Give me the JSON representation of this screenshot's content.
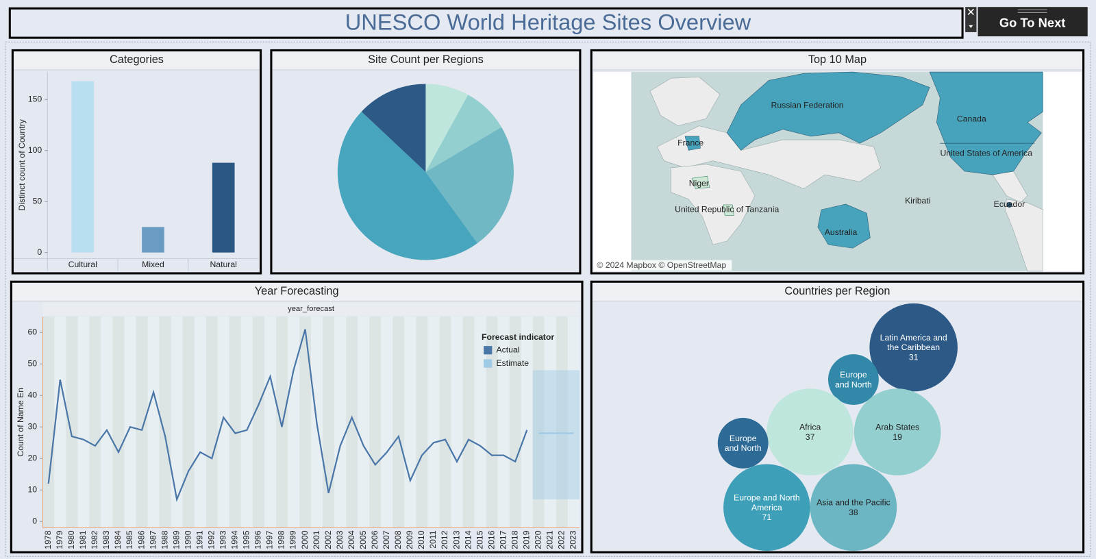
{
  "header": {
    "title": "UNESCO World Heritage Sites Overview",
    "button": "Go To Next"
  },
  "chart_data": [
    {
      "type": "bar",
      "title": "Categories",
      "ylabel": "Distinct count of Country",
      "categories": [
        "Cultural",
        "Mixed",
        "Natural"
      ],
      "values": [
        168,
        25,
        88
      ],
      "colors": [
        "#b9def0",
        "#6a9bc3",
        "#2a5783"
      ],
      "ylim": [
        -6,
        177
      ],
      "yticks": [
        0,
        50,
        100,
        150
      ]
    },
    {
      "type": "pie",
      "title": "Site Count per Regions",
      "categories": [
        null,
        null,
        null,
        null,
        null
      ],
      "values": [
        8,
        8.5,
        23.5,
        47,
        13
      ],
      "colors": [
        "#bfe6dc",
        "#93cfcf",
        "#6fb8c4",
        "#47a5bd",
        "#2c5985"
      ]
    },
    {
      "type": "line",
      "title": "Year Forecasting",
      "subtitle": "year_forecast",
      "ylabel": "Count of Name En",
      "legend_title": "Forecast indicator",
      "categories": [
        "1978",
        "1979",
        "1980",
        "1981",
        "1982",
        "1983",
        "1984",
        "1985",
        "1986",
        "1987",
        "1988",
        "1989",
        "1990",
        "1991",
        "1992",
        "1993",
        "1994",
        "1995",
        "1996",
        "1997",
        "1998",
        "1999",
        "2000",
        "2001",
        "2002",
        "2003",
        "2004",
        "2005",
        "2006",
        "2007",
        "2008",
        "2009",
        "2010",
        "2011",
        "2012",
        "2013",
        "2014",
        "2015",
        "2016",
        "2017",
        "2018",
        "2019",
        "2020",
        "2021",
        "2022",
        "2023"
      ],
      "series": [
        {
          "name": "Actual",
          "color": "#4a77a8",
          "values": [
            12,
            45,
            27,
            26,
            24,
            29,
            22,
            30,
            29,
            41,
            27,
            7,
            16,
            22,
            20,
            33,
            28,
            29,
            37,
            46,
            30,
            48,
            61,
            31,
            9,
            24,
            33,
            24,
            18,
            22,
            27,
            13,
            21,
            25,
            26,
            19,
            26,
            24,
            21,
            21,
            19,
            29,
            null,
            null,
            null,
            null
          ]
        },
        {
          "name": "Estimate",
          "color": "#9fcae6",
          "values": [
            null,
            null,
            null,
            null,
            null,
            null,
            null,
            null,
            null,
            null,
            null,
            null,
            null,
            null,
            null,
            null,
            null,
            null,
            null,
            null,
            null,
            null,
            null,
            null,
            null,
            null,
            null,
            null,
            null,
            null,
            null,
            null,
            null,
            null,
            null,
            null,
            null,
            null,
            null,
            null,
            null,
            null,
            28,
            28,
            28,
            28
          ],
          "lower": [
            null,
            null,
            null,
            null,
            null,
            null,
            null,
            null,
            null,
            null,
            null,
            null,
            null,
            null,
            null,
            null,
            null,
            null,
            null,
            null,
            null,
            null,
            null,
            null,
            null,
            null,
            null,
            null,
            null,
            null,
            null,
            null,
            null,
            null,
            null,
            null,
            null,
            null,
            null,
            null,
            null,
            null,
            7,
            7,
            7,
            7
          ],
          "upper": [
            null,
            null,
            null,
            null,
            null,
            null,
            null,
            null,
            null,
            null,
            null,
            null,
            null,
            null,
            null,
            null,
            null,
            null,
            null,
            null,
            null,
            null,
            null,
            null,
            null,
            null,
            null,
            null,
            null,
            null,
            null,
            null,
            null,
            null,
            null,
            null,
            null,
            null,
            null,
            null,
            null,
            null,
            48,
            48,
            48,
            48
          ]
        }
      ],
      "ylim": [
        -2,
        65
      ],
      "yticks": [
        0,
        10,
        20,
        30,
        40,
        50,
        60
      ]
    },
    {
      "type": "bubble",
      "title": "Countries per Region",
      "categories": [
        "Latin America and the Caribbean",
        "Europe and North",
        "Africa",
        "Arab States",
        "Europe and North",
        "Europe and North America",
        "Asia and the Pacific"
      ],
      "values": [
        31,
        null,
        37,
        19,
        null,
        71,
        38
      ],
      "sizes": [
        100,
        33,
        97,
        97,
        33,
        97,
        97
      ],
      "colors": [
        "#2c5985",
        "#3288a8",
        "#bfe6dc",
        "#93cfcf",
        "#2d6a96",
        "#3ea0b8",
        "#6cb6c3"
      ]
    }
  ],
  "map": {
    "title": "Top 10 Map",
    "labels": [
      "Russian Federation",
      "Canada",
      "United States of America",
      "France",
      "Niger",
      "United Republic of Tanzania",
      "Kiribati",
      "Ecuador",
      "Australia"
    ],
    "attribution": "© 2024 Mapbox © OpenStreetMap"
  }
}
